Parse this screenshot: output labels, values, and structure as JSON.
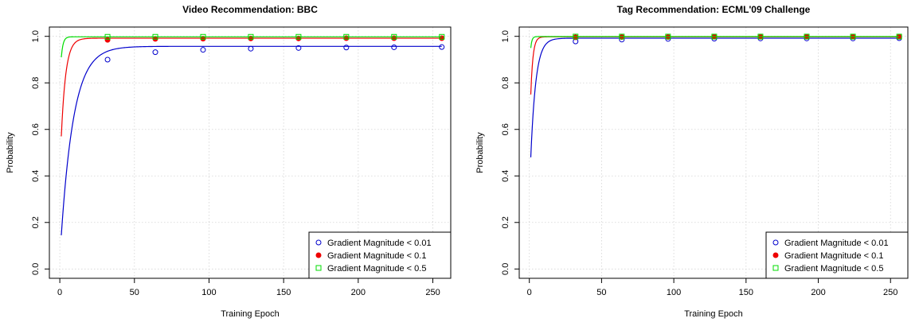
{
  "chart_data": [
    {
      "type": "line",
      "title": "Video Recommendation: BBC",
      "xlabel": "Training Epoch",
      "ylabel": "Probability",
      "xlim": [
        -7,
        262
      ],
      "ylim": [
        -0.04,
        1.04
      ],
      "xticks": [
        0,
        50,
        100,
        150,
        200,
        250
      ],
      "yticks": [
        0.0,
        0.2,
        0.4,
        0.6,
        0.8,
        1.0
      ],
      "grid": true,
      "legend_position": "bottom-right",
      "series": [
        {
          "name": "Gradient Magnitude < 0.01",
          "color": "#0000cc",
          "marker": "open-circle",
          "curve_start": 0.145,
          "asymptote": 0.957,
          "rate_constant": 8.5,
          "x": [
            32,
            64,
            96,
            128,
            160,
            192,
            224,
            256
          ],
          "y": [
            0.9,
            0.932,
            0.942,
            0.947,
            0.95,
            0.952,
            0.953,
            0.954
          ]
        },
        {
          "name": "Gradient Magnitude < 0.1",
          "color": "#ee0000",
          "marker": "filled-circle",
          "curve_start": 0.57,
          "asymptote": 0.992,
          "rate_constant": 3,
          "x": [
            32,
            64,
            96,
            128,
            160,
            192,
            224,
            256
          ],
          "y": [
            0.985,
            0.989,
            0.99,
            0.991,
            0.991,
            0.992,
            0.992,
            0.992
          ]
        },
        {
          "name": "Gradient Magnitude < 0.5",
          "color": "#00dd00",
          "marker": "open-square",
          "curve_start": 0.91,
          "asymptote": 0.998,
          "rate_constant": 1.2,
          "x": [
            32,
            64,
            96,
            128,
            160,
            192,
            224,
            256
          ],
          "y": [
            0.998,
            0.998,
            0.998,
            0.998,
            0.998,
            0.998,
            0.998,
            0.998
          ]
        }
      ]
    },
    {
      "type": "line",
      "title": "Tag Recommendation: ECML'09 Challenge",
      "xlabel": "Training Epoch",
      "ylabel": "Probability",
      "xlim": [
        -7,
        262
      ],
      "ylim": [
        -0.04,
        1.04
      ],
      "xticks": [
        0,
        50,
        100,
        150,
        200,
        250
      ],
      "yticks": [
        0.0,
        0.2,
        0.4,
        0.6,
        0.8,
        1.0
      ],
      "grid": true,
      "legend_position": "bottom-right",
      "series": [
        {
          "name": "Gradient Magnitude < 0.01",
          "color": "#0000cc",
          "marker": "open-circle",
          "curve_start": 0.48,
          "asymptote": 0.992,
          "rate_constant": 3.5,
          "x": [
            32,
            64,
            96,
            128,
            160,
            192,
            224,
            256
          ],
          "y": [
            0.978,
            0.986,
            0.989,
            0.99,
            0.991,
            0.991,
            0.991,
            0.992
          ]
        },
        {
          "name": "Gradient Magnitude < 0.1",
          "color": "#ee0000",
          "marker": "filled-circle",
          "curve_start": 0.75,
          "asymptote": 0.998,
          "rate_constant": 1.5,
          "x": [
            32,
            64,
            96,
            128,
            160,
            192,
            224,
            256
          ],
          "y": [
            0.996,
            0.997,
            0.997,
            0.998,
            0.998,
            0.998,
            0.998,
            0.998
          ]
        },
        {
          "name": "Gradient Magnitude < 0.5",
          "color": "#00dd00",
          "marker": "open-square",
          "curve_start": 0.95,
          "asymptote": 0.999,
          "rate_constant": 0.8,
          "x": [
            32,
            64,
            96,
            128,
            160,
            192,
            224,
            256
          ],
          "y": [
            0.999,
            0.999,
            0.999,
            0.999,
            0.999,
            0.999,
            0.999,
            0.999
          ]
        }
      ]
    }
  ]
}
